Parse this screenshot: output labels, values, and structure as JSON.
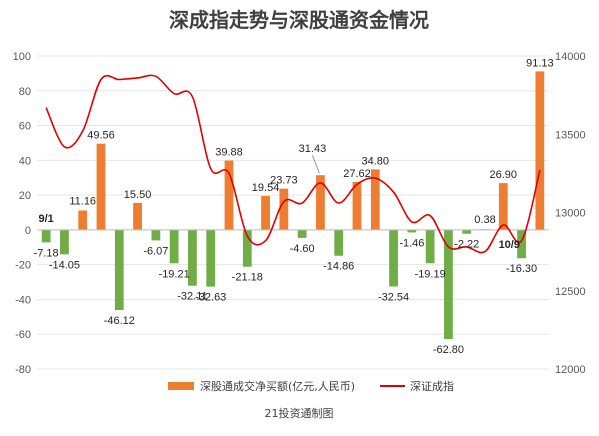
{
  "chart_data": {
    "type": "bar+line",
    "title": "深成指走势与深股通资金情况",
    "source": "21投资通制图",
    "colors": {
      "bar_positive": "#ED7D31",
      "bar_negative": "#70AD47",
      "line": "#E00000"
    },
    "left_axis": {
      "ylim": [
        -80,
        100
      ],
      "ticks": [
        "100",
        "80",
        "60",
        "40",
        "20",
        "0",
        "-20",
        "-40",
        "-60",
        "-80"
      ]
    },
    "right_axis": {
      "ylim": [
        12000,
        14000
      ],
      "ticks": [
        "14000",
        "13500",
        "13000",
        "12500",
        "12000"
      ]
    },
    "date_labels": [
      {
        "text": "9/1",
        "index": 0
      },
      {
        "text": "10/9",
        "index": 25
      }
    ],
    "series": [
      {
        "name": "深股通成交净买额(亿元,人民币)",
        "kind": "bar",
        "axis": "left",
        "values": [
          -7.18,
          -14.05,
          11.16,
          49.56,
          -46.12,
          15.5,
          -6.07,
          -19.21,
          -32.11,
          -32.63,
          39.88,
          -21.18,
          19.54,
          23.73,
          -4.6,
          31.43,
          -14.86,
          27.62,
          34.8,
          -32.54,
          -1.46,
          -19.19,
          -62.8,
          -2.22,
          0.38,
          26.9,
          -16.3,
          91.13
        ],
        "labels": [
          "-7.18",
          "-14.05",
          "11.16",
          "49.56",
          "-46.12",
          "15.50",
          "-6.07",
          "-19.21",
          "-32.11",
          "-32.63",
          "39.88",
          "-21.18",
          "19.54",
          "23.73",
          "-4.60",
          "31.43",
          "-14.86",
          "27.62",
          "34.80",
          "-32.54",
          "-1.46",
          "-19.19",
          "-62.80",
          "-2.22",
          "0.38",
          "26.90",
          "-16.30",
          "91.13"
        ]
      },
      {
        "name": "深证成指",
        "kind": "line",
        "axis": "right",
        "values": [
          13670,
          13420,
          13520,
          13850,
          13850,
          13860,
          13870,
          13760,
          13740,
          13280,
          13250,
          12850,
          12820,
          13070,
          13060,
          13190,
          13060,
          13180,
          13220,
          13130,
          12940,
          12980,
          12780,
          12780,
          12750,
          12920,
          12820,
          13270
        ]
      }
    ],
    "legend": {
      "placement": "bottom"
    }
  }
}
